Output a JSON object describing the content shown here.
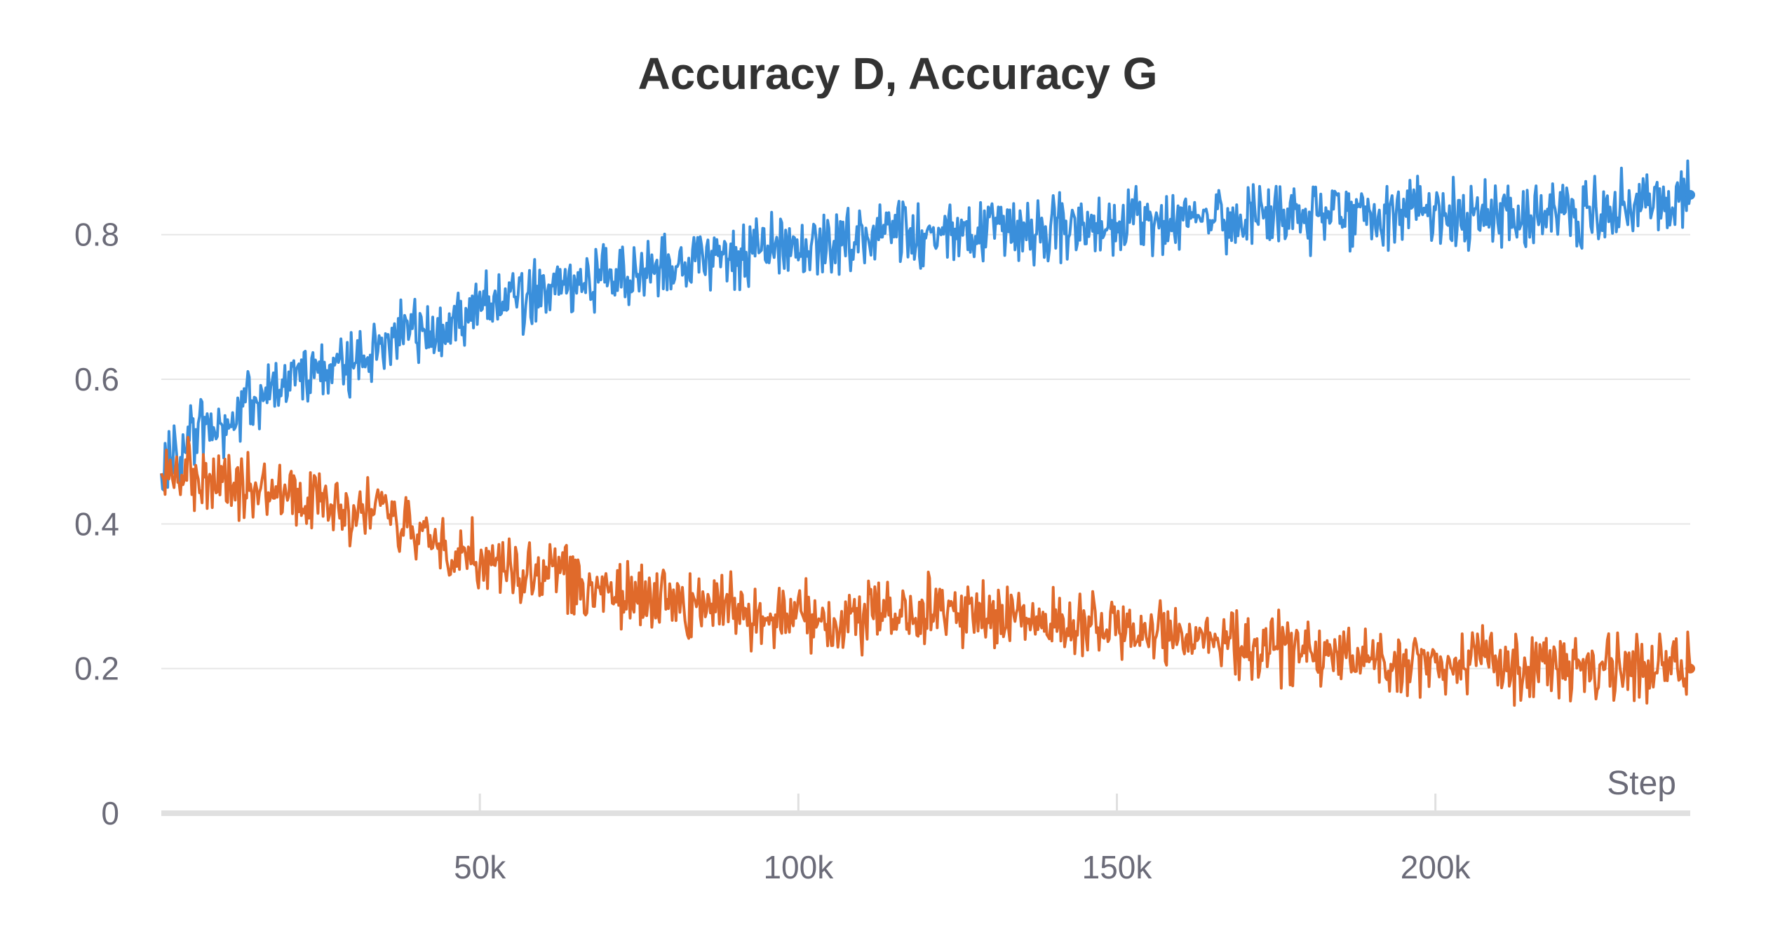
{
  "chart_data": {
    "type": "line",
    "title": "Accuracy D, Accuracy G",
    "xlabel": "Step",
    "ylabel": "",
    "xlim": [
      0,
      240000
    ],
    "ylim": [
      0,
      0.95
    ],
    "x_ticks": [
      {
        "value": 50000,
        "label": "50k"
      },
      {
        "value": 100000,
        "label": "100k"
      },
      {
        "value": 150000,
        "label": "150k"
      },
      {
        "value": 200000,
        "label": "200k"
      }
    ],
    "y_ticks": [
      {
        "value": 0,
        "label": "0"
      },
      {
        "value": 0.2,
        "label": "0.2"
      },
      {
        "value": 0.4,
        "label": "0.4"
      },
      {
        "value": 0.6,
        "label": "0.6"
      },
      {
        "value": 0.8,
        "label": "0.8"
      }
    ],
    "grid": "horizontal",
    "series": [
      {
        "color": "#3a8fdb",
        "x": [
          0,
          5000,
          10000,
          15000,
          20000,
          25000,
          30000,
          35000,
          40000,
          45000,
          50000,
          55000,
          60000,
          65000,
          70000,
          75000,
          80000,
          85000,
          90000,
          95000,
          100000,
          105000,
          110000,
          115000,
          120000,
          125000,
          130000,
          135000,
          140000,
          145000,
          150000,
          155000,
          160000,
          165000,
          170000,
          175000,
          180000,
          185000,
          190000,
          195000,
          200000,
          205000,
          210000,
          215000,
          220000,
          225000,
          230000,
          235000,
          240000
        ],
        "y": [
          0.47,
          0.53,
          0.54,
          0.57,
          0.6,
          0.61,
          0.63,
          0.65,
          0.67,
          0.68,
          0.7,
          0.71,
          0.72,
          0.73,
          0.74,
          0.75,
          0.76,
          0.77,
          0.77,
          0.78,
          0.78,
          0.79,
          0.79,
          0.8,
          0.8,
          0.8,
          0.81,
          0.81,
          0.81,
          0.81,
          0.82,
          0.82,
          0.82,
          0.82,
          0.82,
          0.82,
          0.82,
          0.83,
          0.83,
          0.83,
          0.83,
          0.83,
          0.83,
          0.83,
          0.83,
          0.83,
          0.84,
          0.84,
          0.855
        ],
        "noise": 0.04
      },
      {
        "color": "#e06a2b",
        "x": [
          0,
          5000,
          10000,
          15000,
          20000,
          25000,
          30000,
          35000,
          40000,
          45000,
          50000,
          55000,
          60000,
          65000,
          70000,
          75000,
          80000,
          85000,
          90000,
          95000,
          100000,
          105000,
          110000,
          115000,
          120000,
          125000,
          130000,
          135000,
          140000,
          145000,
          150000,
          155000,
          160000,
          165000,
          170000,
          175000,
          180000,
          185000,
          190000,
          195000,
          200000,
          205000,
          210000,
          215000,
          220000,
          225000,
          230000,
          235000,
          240000
        ],
        "y": [
          0.47,
          0.47,
          0.46,
          0.45,
          0.44,
          0.43,
          0.42,
          0.41,
          0.39,
          0.37,
          0.35,
          0.34,
          0.33,
          0.32,
          0.31,
          0.3,
          0.29,
          0.29,
          0.28,
          0.27,
          0.27,
          0.27,
          0.27,
          0.28,
          0.28,
          0.28,
          0.28,
          0.27,
          0.26,
          0.26,
          0.25,
          0.25,
          0.24,
          0.24,
          0.23,
          0.23,
          0.22,
          0.22,
          0.21,
          0.21,
          0.21,
          0.21,
          0.2,
          0.2,
          0.2,
          0.2,
          0.2,
          0.2,
          0.2
        ],
        "noise": 0.04
      }
    ]
  }
}
